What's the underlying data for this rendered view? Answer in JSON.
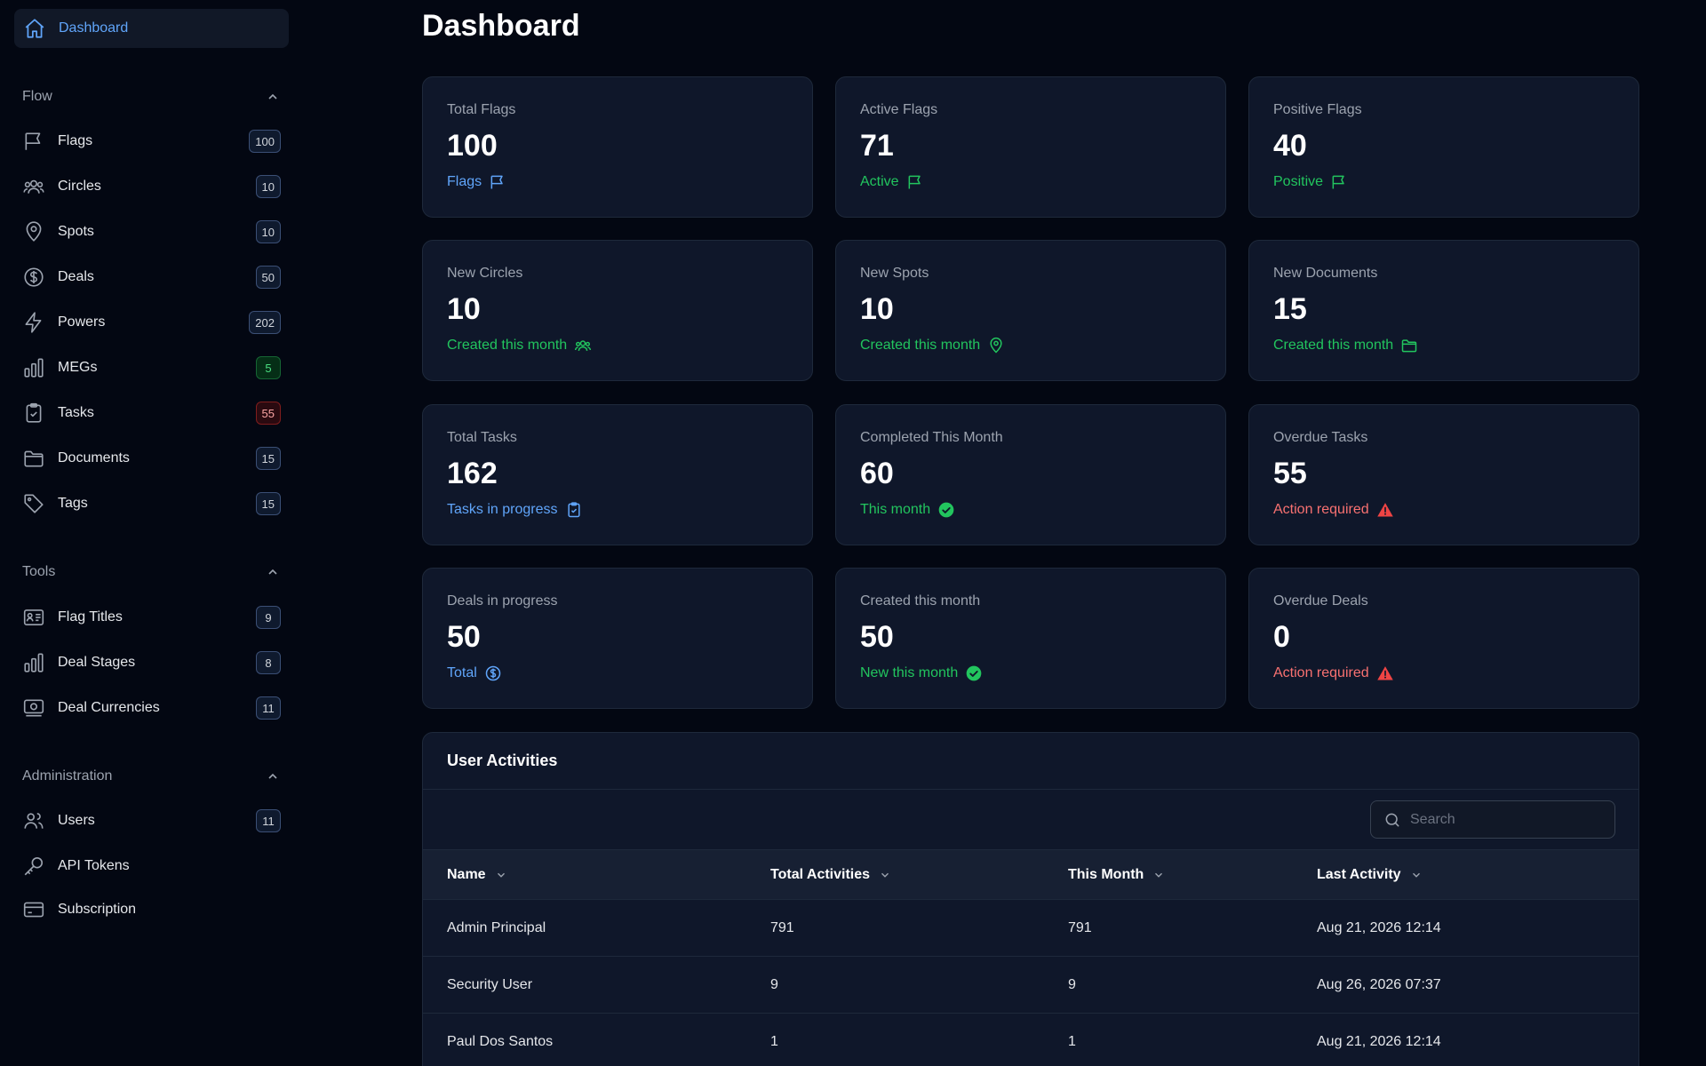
{
  "sidebar": {
    "dashboard_label": "Dashboard",
    "sections": [
      {
        "title": "Flow",
        "items": [
          {
            "label": "Flags",
            "count": "100",
            "icon": "flag-icon"
          },
          {
            "label": "Circles",
            "count": "10",
            "icon": "users-icon"
          },
          {
            "label": "Spots",
            "count": "10",
            "icon": "map-pin-icon"
          },
          {
            "label": "Deals",
            "count": "50",
            "icon": "dollar-icon"
          },
          {
            "label": "Powers",
            "count": "202",
            "icon": "bolt-icon"
          },
          {
            "label": "MEGs",
            "count": "5",
            "icon": "bar-chart-icon"
          },
          {
            "label": "Tasks",
            "count": "55",
            "icon": "clipboard-icon"
          },
          {
            "label": "Documents",
            "count": "15",
            "icon": "folder-icon"
          },
          {
            "label": "Tags",
            "count": "15",
            "icon": "tag-icon"
          }
        ]
      },
      {
        "title": "Tools",
        "items": [
          {
            "label": "Flag Titles",
            "count": "9",
            "icon": "id-card-icon"
          },
          {
            "label": "Deal Stages",
            "count": "8",
            "icon": "bar-chart-icon"
          },
          {
            "label": "Deal Currencies",
            "count": "11",
            "icon": "banknote-icon"
          }
        ]
      },
      {
        "title": "Administration",
        "items": [
          {
            "label": "Users",
            "count": "11",
            "icon": "users-icon"
          },
          {
            "label": "API Tokens",
            "count": "",
            "icon": "key-icon"
          },
          {
            "label": "Subscription",
            "count": "",
            "icon": "credit-card-icon"
          }
        ]
      }
    ]
  },
  "main": {
    "title": "Dashboard",
    "cards": [
      {
        "label": "Total Flags",
        "value": "100",
        "sub": "Flags",
        "tone": "blue",
        "icon": "flag-icon"
      },
      {
        "label": "Active Flags",
        "value": "71",
        "sub": "Active",
        "tone": "green",
        "icon": "flag-icon"
      },
      {
        "label": "Positive Flags",
        "value": "40",
        "sub": "Positive",
        "tone": "green",
        "icon": "flag-icon"
      },
      {
        "label": "New Circles",
        "value": "10",
        "sub": "Created this month",
        "tone": "green",
        "icon": "users-icon"
      },
      {
        "label": "New Spots",
        "value": "10",
        "sub": "Created this month",
        "tone": "green",
        "icon": "map-pin-icon"
      },
      {
        "label": "New Documents",
        "value": "15",
        "sub": "Created this month",
        "tone": "green",
        "icon": "folder-icon"
      },
      {
        "label": "Total Tasks",
        "value": "162",
        "sub": "Tasks in progress",
        "tone": "blue",
        "icon": "clipboard-icon"
      },
      {
        "label": "Completed This Month",
        "value": "60",
        "sub": "This month",
        "tone": "green",
        "icon": "check-circle-icon"
      },
      {
        "label": "Overdue Tasks",
        "value": "55",
        "sub": "Action required",
        "tone": "red",
        "icon": "warning-icon"
      },
      {
        "label": "Deals in progress",
        "value": "50",
        "sub": "Total",
        "tone": "blue",
        "icon": "dollar-icon"
      },
      {
        "label": "Created this month",
        "value": "50",
        "sub": "New this month",
        "tone": "green",
        "icon": "check-circle-icon"
      },
      {
        "label": "Overdue Deals",
        "value": "0",
        "sub": "Action required",
        "tone": "red",
        "icon": "warning-icon"
      }
    ],
    "activities": {
      "title": "User Activities",
      "search_placeholder": "Search",
      "columns": [
        "Name",
        "Total Activities",
        "This Month",
        "Last Activity"
      ],
      "rows": [
        [
          "Admin Principal",
          "791",
          "791",
          "Aug 21, 2026 12:14"
        ],
        [
          "Security User",
          "9",
          "9",
          "Aug 26, 2026 07:37"
        ],
        [
          "Paul Dos Santos",
          "1",
          "1",
          "Aug 21, 2026 12:14"
        ]
      ]
    }
  },
  "colors": {
    "background": "#030712",
    "card": "#0f172a",
    "accent_blue": "#60a5fa",
    "success_green": "#22c55e",
    "danger_red": "#f87171"
  }
}
